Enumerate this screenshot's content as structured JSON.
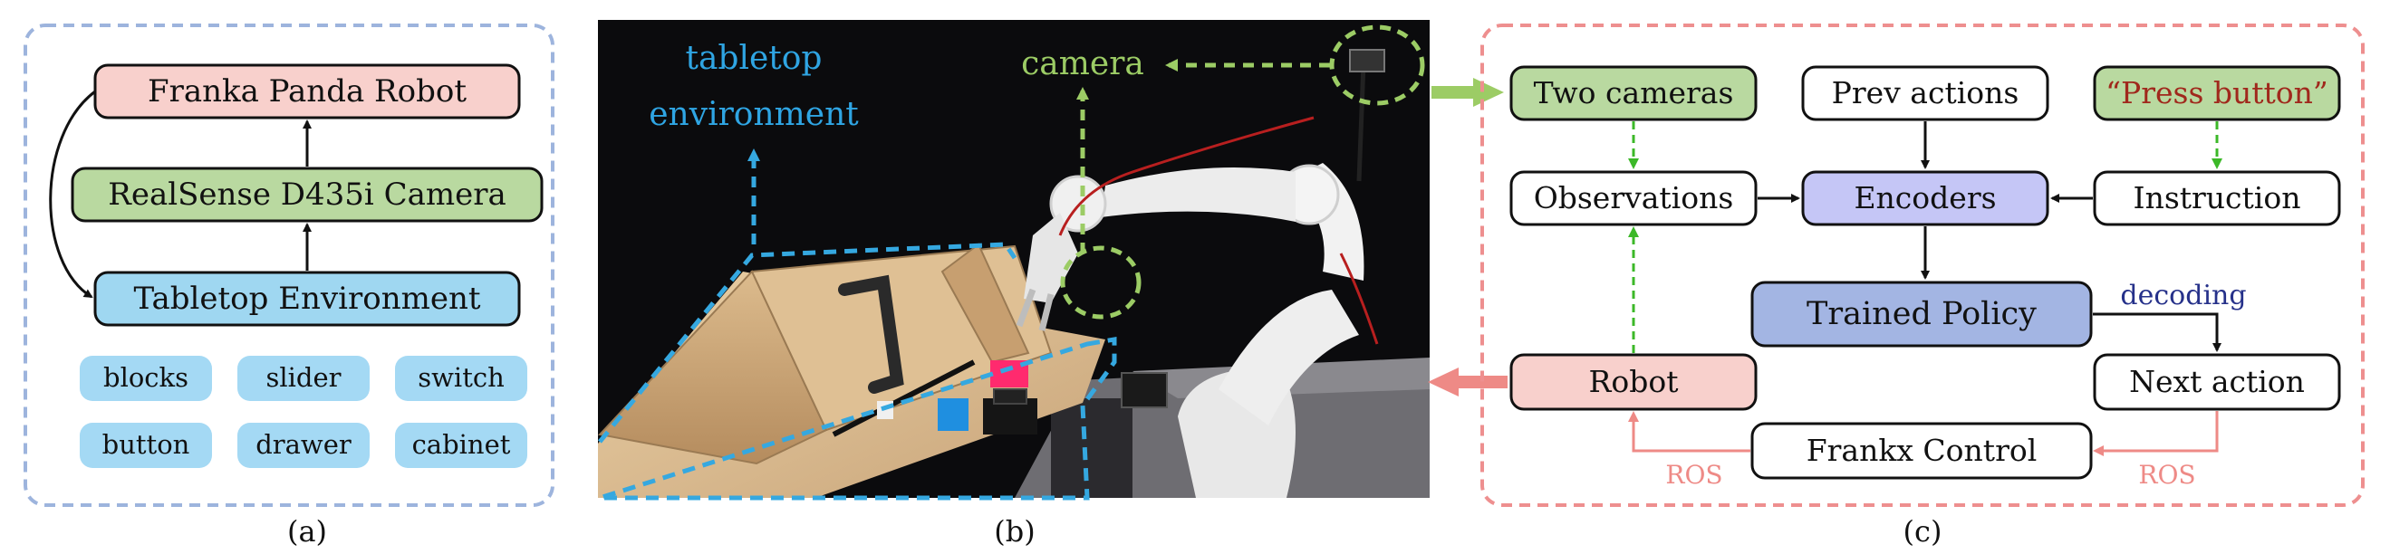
{
  "panel_a": {
    "robot": "Franka Panda Robot",
    "camera": "RealSense D435i Camera",
    "environment": "Tabletop Environment",
    "objects": [
      "blocks",
      "slider",
      "switch",
      "button",
      "drawer",
      "cabinet"
    ],
    "caption": "(a)"
  },
  "panel_b": {
    "label_env_1": "tabletop",
    "label_env_2": "environment",
    "label_camera": "camera",
    "caption": "(b)"
  },
  "panel_c": {
    "two_cameras": "Two cameras",
    "prev_actions": "Prev actions",
    "instruction_quote": "“Press button”",
    "observations": "Observations",
    "encoders": "Encoders",
    "instruction": "Instruction",
    "trained_policy": "Trained Policy",
    "decoding": "decoding",
    "robot": "Robot",
    "next_action": "Next action",
    "frankx_control": "Frankx Control",
    "ros_left": "ROS",
    "ros_right": "ROS",
    "caption": "(c)"
  },
  "colors": {
    "panel_a_border": "#9db4dd",
    "panel_c_border": "#ee8f8f",
    "robot_fill": "#f8d0cc",
    "camera_fill": "#b9d9a0",
    "env_fill": "#9fd7f1",
    "object_fill": "#a4d9f4",
    "encoders_fill": "#c5c6f6",
    "policy_fill": "#a3b5e3",
    "green_dash": "#3cb828",
    "red_arrow": "#ee8a86",
    "blue_dash": "#35a8e0",
    "camera_label": "#9ccc65",
    "env_label": "#2fa5e3",
    "quote_text": "#a0281c",
    "decoding_text": "#26318a"
  }
}
